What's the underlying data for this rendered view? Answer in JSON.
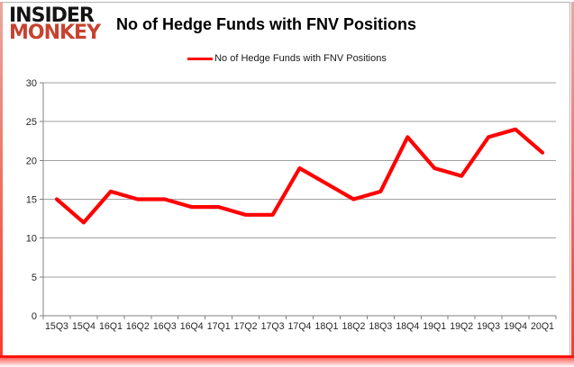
{
  "logo": {
    "line1": "INSIDER",
    "line2": "MONKEY"
  },
  "header": {
    "title": "No of Hedge Funds with FNV Positions"
  },
  "legend": {
    "label": "No of Hedge Funds with FNV Positions"
  },
  "colors": {
    "line": "#ff0000",
    "grid": "#a0a0a0",
    "axis": "#808080",
    "tick_text": "#262626",
    "logo_black": "#141414",
    "logo_red": "#c64330",
    "frame_red": "#fb150b"
  },
  "chart_data": {
    "type": "line",
    "title": "No of Hedge Funds with FNV Positions",
    "categories": [
      "15Q3",
      "15Q4",
      "16Q1",
      "16Q2",
      "16Q3",
      "16Q4",
      "17Q1",
      "17Q2",
      "17Q3",
      "17Q4",
      "18Q1",
      "18Q2",
      "18Q3",
      "18Q4",
      "19Q1",
      "19Q2",
      "19Q3",
      "19Q4",
      "20Q1"
    ],
    "series": [
      {
        "name": "No of Hedge Funds with FNV Positions",
        "color": "#ff0000",
        "values": [
          15,
          12,
          16,
          15,
          15,
          14,
          14,
          13,
          13,
          19,
          17,
          15,
          16,
          23,
          19,
          18,
          23,
          24,
          21
        ]
      }
    ],
    "xlabel": "",
    "ylabel": "",
    "ylim": [
      0,
      30
    ],
    "yticks": [
      0,
      5,
      10,
      15,
      20,
      25,
      30
    ],
    "grid": "horizontal",
    "legend_position": "top-center"
  }
}
